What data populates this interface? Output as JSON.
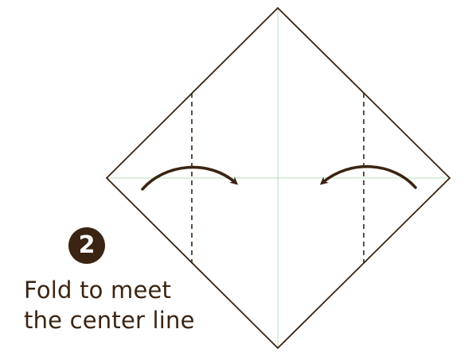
{
  "step": {
    "number": "2"
  },
  "instruction": {
    "line1": "Fold to meet",
    "line2": "the center line"
  },
  "colors": {
    "outline": "#3a2412",
    "fold_line": "#3a2412",
    "arrow": "#3a2412",
    "center_guides": "#b8dcb8",
    "badge_bg": "#3a2412",
    "badge_text": "#ffffff",
    "text": "#3a2412"
  },
  "icons": {
    "left_arrow": "curved-arrow-right-icon",
    "right_arrow": "curved-arrow-left-icon"
  }
}
